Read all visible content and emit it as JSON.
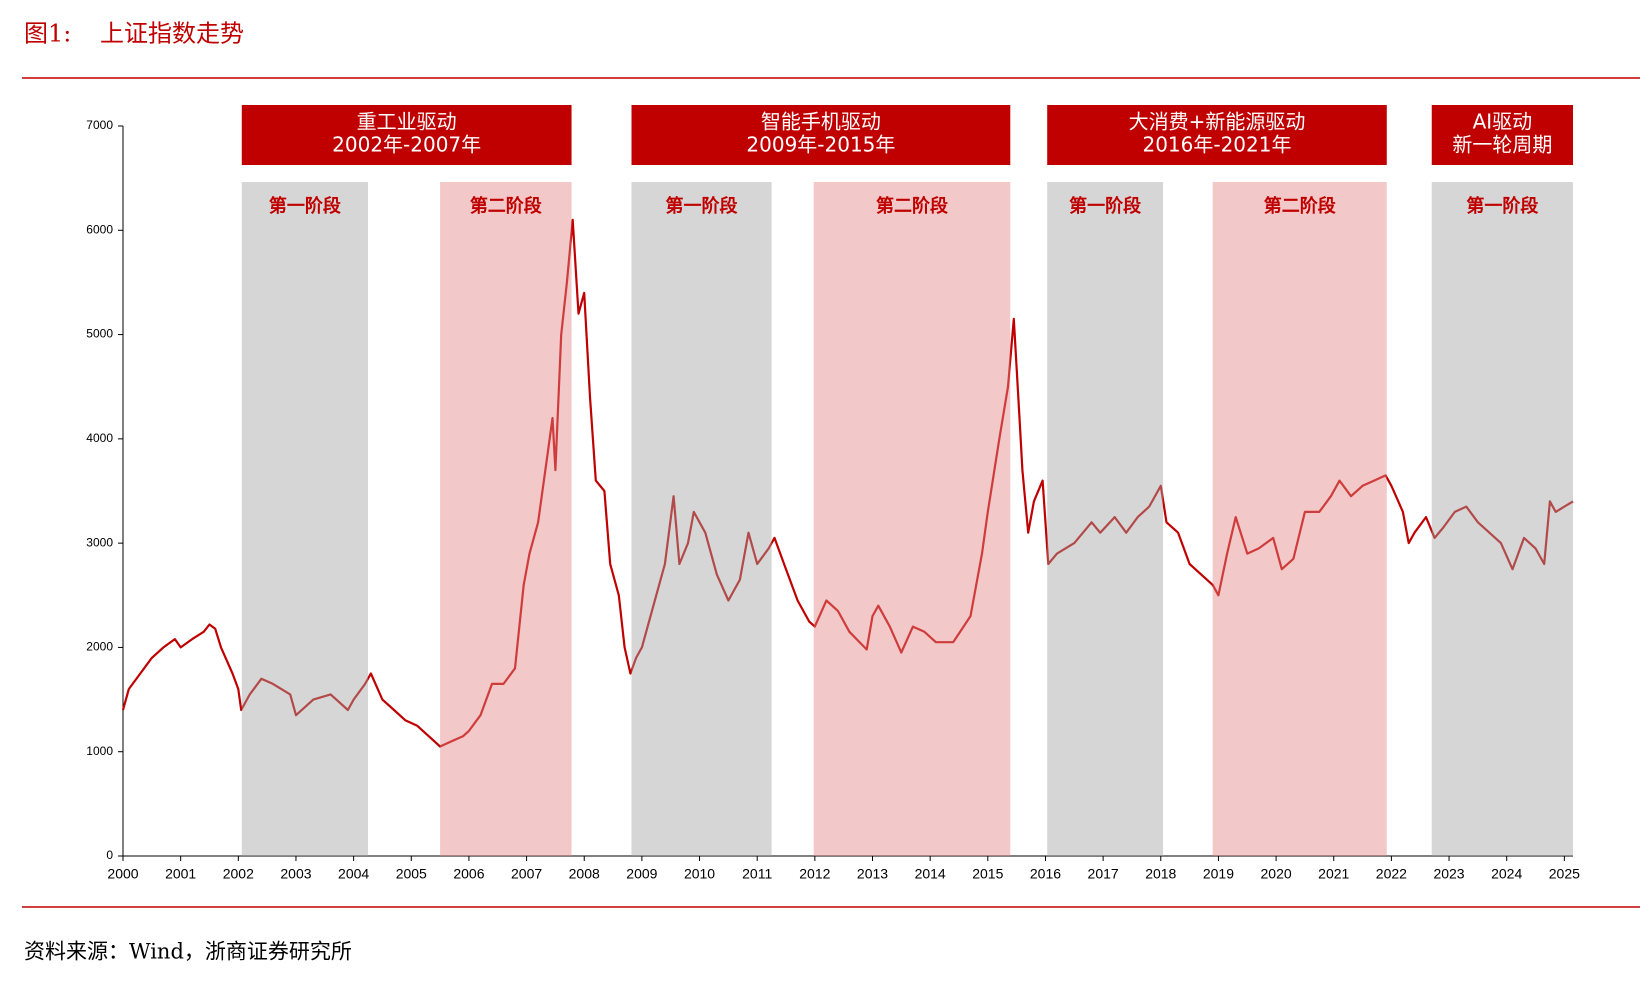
{
  "chart_data": {
    "type": "line",
    "figure_label": "图1:",
    "title": "上证指数走势",
    "source": "资料来源：Wind，浙商证券研究所",
    "color": "#c00000",
    "xlim": [
      2000,
      2025.15
    ],
    "ylim": [
      0,
      7000
    ],
    "xticks": [
      2000,
      2001,
      2002,
      2003,
      2004,
      2005,
      2006,
      2007,
      2008,
      2009,
      2010,
      2011,
      2012,
      2013,
      2014,
      2015,
      2016,
      2017,
      2018,
      2019,
      2020,
      2021,
      2022,
      2023,
      2024,
      2025
    ],
    "yticks": [
      0,
      1000,
      2000,
      3000,
      4000,
      5000,
      6000,
      7000
    ],
    "eras": [
      {
        "start": 2002.06,
        "end": 2007.78,
        "lines": [
          "重工业驱动",
          "2002年-2007年"
        ]
      },
      {
        "start": 2008.82,
        "end": 2015.39,
        "lines": [
          "智能手机驱动",
          "2009年-2015年"
        ]
      },
      {
        "start": 2016.03,
        "end": 2021.92,
        "lines": [
          "大消费+新能源驱动",
          "2016年-2021年"
        ]
      },
      {
        "start": 2022.7,
        "end": 2025.15,
        "lines": [
          "AI驱动",
          "新一轮周期"
        ]
      }
    ],
    "phases": [
      {
        "start": 2002.06,
        "end": 2004.25,
        "label": "第一阶段",
        "color": "#a4a4a4"
      },
      {
        "start": 2005.5,
        "end": 2007.78,
        "label": "第二阶段",
        "color": "#e38585"
      },
      {
        "start": 2008.82,
        "end": 2011.25,
        "label": "第一阶段",
        "color": "#a4a4a4"
      },
      {
        "start": 2011.98,
        "end": 2015.39,
        "label": "第二阶段",
        "color": "#e38585"
      },
      {
        "start": 2016.03,
        "end": 2018.04,
        "label": "第一阶段",
        "color": "#a4a4a4"
      },
      {
        "start": 2018.9,
        "end": 2021.92,
        "label": "第二阶段",
        "color": "#e38585"
      },
      {
        "start": 2022.7,
        "end": 2025.15,
        "label": "第一阶段",
        "color": "#a4a4a4"
      }
    ],
    "x": [
      2000.0,
      2000.1,
      2000.3,
      2000.5,
      2000.7,
      2000.9,
      2001.0,
      2001.2,
      2001.4,
      2001.5,
      2001.6,
      2001.7,
      2001.9,
      2002.0,
      2002.05,
      2002.2,
      2002.4,
      2002.6,
      2002.9,
      2003.0,
      2003.3,
      2003.6,
      2003.9,
      2004.0,
      2004.2,
      2004.3,
      2004.5,
      2004.7,
      2004.9,
      2005.1,
      2005.3,
      2005.5,
      2005.7,
      2005.9,
      2006.0,
      2006.2,
      2006.4,
      2006.6,
      2006.8,
      2006.95,
      2007.05,
      2007.2,
      2007.35,
      2007.45,
      2007.5,
      2007.6,
      2007.7,
      2007.8,
      2007.9,
      2008.0,
      2008.1,
      2008.2,
      2008.35,
      2008.45,
      2008.6,
      2008.7,
      2008.8,
      2008.9,
      2009.0,
      2009.2,
      2009.4,
      2009.55,
      2009.65,
      2009.8,
      2009.9,
      2010.1,
      2010.3,
      2010.5,
      2010.7,
      2010.85,
      2011.0,
      2011.2,
      2011.3,
      2011.5,
      2011.7,
      2011.9,
      2012.0,
      2012.2,
      2012.4,
      2012.6,
      2012.9,
      2013.0,
      2013.1,
      2013.3,
      2013.5,
      2013.7,
      2013.9,
      2014.1,
      2014.4,
      2014.7,
      2014.9,
      2015.0,
      2015.2,
      2015.35,
      2015.45,
      2015.55,
      2015.6,
      2015.7,
      2015.8,
      2015.95,
      2016.05,
      2016.2,
      2016.5,
      2016.8,
      2016.95,
      2017.2,
      2017.4,
      2017.6,
      2017.8,
      2018.0,
      2018.1,
      2018.3,
      2018.5,
      2018.7,
      2018.9,
      2019.0,
      2019.15,
      2019.3,
      2019.5,
      2019.7,
      2019.95,
      2020.1,
      2020.3,
      2020.5,
      2020.75,
      2020.95,
      2021.1,
      2021.3,
      2021.5,
      2021.7,
      2021.9,
      2022.0,
      2022.2,
      2022.3,
      2022.4,
      2022.6,
      2022.75,
      2022.9,
      2023.1,
      2023.3,
      2023.5,
      2023.7,
      2023.9,
      2024.1,
      2024.3,
      2024.5,
      2024.65,
      2024.75,
      2024.85,
      2025.0,
      2025.15
    ],
    "values": [
      1400,
      1600,
      1750,
      1900,
      2000,
      2080,
      2000,
      2080,
      2150,
      2220,
      2180,
      2000,
      1750,
      1600,
      1400,
      1550,
      1700,
      1650,
      1550,
      1350,
      1500,
      1550,
      1400,
      1500,
      1650,
      1750,
      1500,
      1400,
      1300,
      1250,
      1150,
      1050,
      1100,
      1150,
      1200,
      1350,
      1650,
      1650,
      1800,
      2600,
      2900,
      3200,
      3800,
      4200,
      3700,
      5000,
      5500,
      6100,
      5200,
      5400,
      4400,
      3600,
      3500,
      2800,
      2500,
      2000,
      1750,
      1900,
      2000,
      2400,
      2800,
      3450,
      2800,
      3000,
      3300,
      3100,
      2700,
      2450,
      2650,
      3100,
      2800,
      2950,
      3050,
      2750,
      2450,
      2250,
      2200,
      2450,
      2350,
      2150,
      1980,
      2300,
      2400,
      2200,
      1950,
      2200,
      2150,
      2050,
      2050,
      2300,
      2900,
      3300,
      4000,
      4500,
      5150,
      4200,
      3700,
      3100,
      3400,
      3600,
      2800,
      2900,
      3000,
      3200,
      3100,
      3250,
      3100,
      3250,
      3350,
      3550,
      3200,
      3100,
      2800,
      2700,
      2600,
      2500,
      2900,
      3250,
      2900,
      2950,
      3050,
      2750,
      2850,
      3300,
      3300,
      3450,
      3600,
      3450,
      3550,
      3600,
      3650,
      3550,
      3300,
      3000,
      3100,
      3250,
      3050,
      3150,
      3300,
      3350,
      3200,
      3100,
      3000,
      2750,
      3050,
      2950,
      2800,
      3400,
      3300,
      3350,
      3400
    ]
  }
}
